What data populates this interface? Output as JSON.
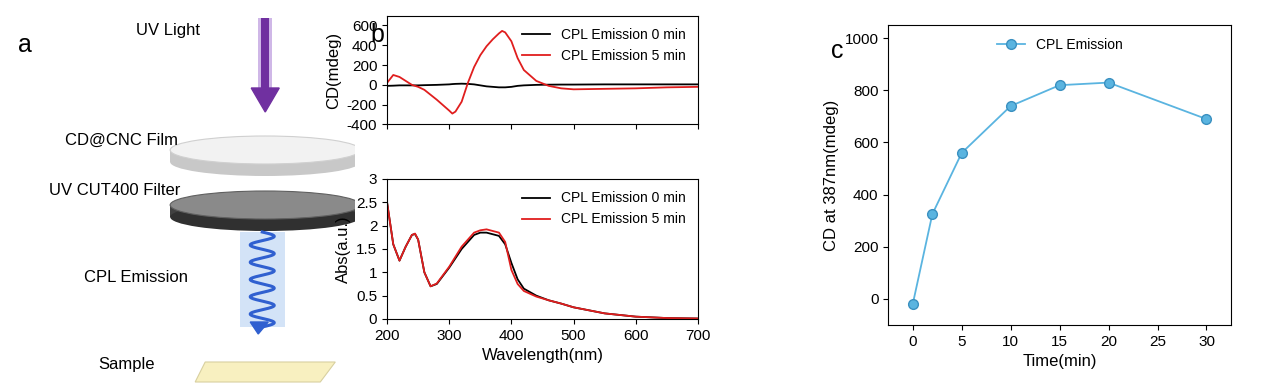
{
  "panel_labels": [
    "a",
    "b",
    "c"
  ],
  "diagram": {
    "light": "UV Light",
    "film": "CD@CNC Film",
    "filter": "UV CUT400 Filter",
    "emission": "CPL Emission",
    "sample": "Sample"
  },
  "chart_data": [
    {
      "type": "line",
      "ylabel": "CD(mdeg)",
      "x": [
        200,
        210,
        220,
        230,
        240,
        250,
        260,
        280,
        300,
        305,
        310,
        320,
        330,
        340,
        350,
        360,
        370,
        380,
        385,
        390,
        400,
        410,
        420,
        440,
        460,
        480,
        500,
        550,
        600,
        650,
        700
      ],
      "series": [
        {
          "name": "CPL Emission 0 min",
          "color": "#000000",
          "values": [
            -10,
            -8,
            -5,
            -5,
            -5,
            -5,
            -3,
            0,
            5,
            8,
            10,
            12,
            10,
            5,
            -5,
            -15,
            -20,
            -25,
            -25,
            -25,
            -20,
            -10,
            -5,
            0,
            2,
            3,
            3,
            5,
            5,
            5,
            5
          ]
        },
        {
          "name": "CPL Emission 5 min",
          "color": "#e01e1e",
          "values": [
            20,
            100,
            80,
            40,
            0,
            -20,
            -50,
            -150,
            -260,
            -290,
            -270,
            -170,
            20,
            180,
            300,
            390,
            460,
            520,
            545,
            530,
            440,
            270,
            150,
            40,
            -10,
            -35,
            -45,
            -40,
            -35,
            -25,
            -20
          ]
        }
      ],
      "xlim": [
        200,
        700
      ],
      "xticks": [
        200,
        300,
        400,
        500,
        600,
        700
      ],
      "ylim": [
        -400,
        700
      ],
      "yticks": [
        -400,
        -200,
        0,
        200,
        400,
        600
      ],
      "tick_labels": "y",
      "legend": "upper right"
    },
    {
      "type": "line",
      "xlabel": "Wavelength(nm)",
      "ylabel": "Abs(a.u.)",
      "x": [
        200,
        210,
        220,
        230,
        240,
        245,
        250,
        260,
        270,
        280,
        300,
        320,
        340,
        350,
        360,
        380,
        390,
        400,
        410,
        420,
        440,
        460,
        480,
        500,
        550,
        600,
        650,
        700
      ],
      "series": [
        {
          "name": "CPL Emission 0 min",
          "color": "#000000",
          "values": [
            2.5,
            1.6,
            1.25,
            1.55,
            1.8,
            1.82,
            1.7,
            1.0,
            0.7,
            0.75,
            1.1,
            1.5,
            1.8,
            1.85,
            1.85,
            1.78,
            1.6,
            1.2,
            0.85,
            0.65,
            0.5,
            0.4,
            0.33,
            0.25,
            0.12,
            0.05,
            0.02,
            0.01
          ]
        },
        {
          "name": "CPL Emission 5 min",
          "color": "#e01e1e",
          "values": [
            2.5,
            1.6,
            1.25,
            1.55,
            1.8,
            1.83,
            1.7,
            1.0,
            0.7,
            0.76,
            1.12,
            1.55,
            1.85,
            1.9,
            1.92,
            1.85,
            1.65,
            1.05,
            0.75,
            0.6,
            0.48,
            0.4,
            0.33,
            0.25,
            0.12,
            0.05,
            0.02,
            0.01
          ]
        }
      ],
      "xlim": [
        200,
        700
      ],
      "xticks": [
        200,
        300,
        400,
        500,
        600,
        700
      ],
      "ylim": [
        0,
        3
      ],
      "yticks": [
        0,
        0.5,
        1,
        1.5,
        2,
        2.5,
        3
      ],
      "legend": "upper right"
    },
    {
      "type": "line",
      "xlabel": "Time(min)",
      "ylabel": "CD at 387nm(mdeg)",
      "x": [
        0,
        2,
        5,
        10,
        15,
        20,
        30
      ],
      "series": [
        {
          "name": "CPL Emission",
          "color": "#5ab4e0",
          "marker": "circle",
          "values": [
            -20,
            325,
            560,
            740,
            820,
            830,
            690
          ]
        }
      ],
      "xlim": [
        -2.5,
        32.5
      ],
      "xticks": [
        0,
        5,
        10,
        15,
        20,
        25,
        30
      ],
      "ylim": [
        -100,
        1050
      ],
      "yticks": [
        0,
        200,
        400,
        600,
        800,
        1000
      ],
      "legend": "upper center"
    }
  ]
}
